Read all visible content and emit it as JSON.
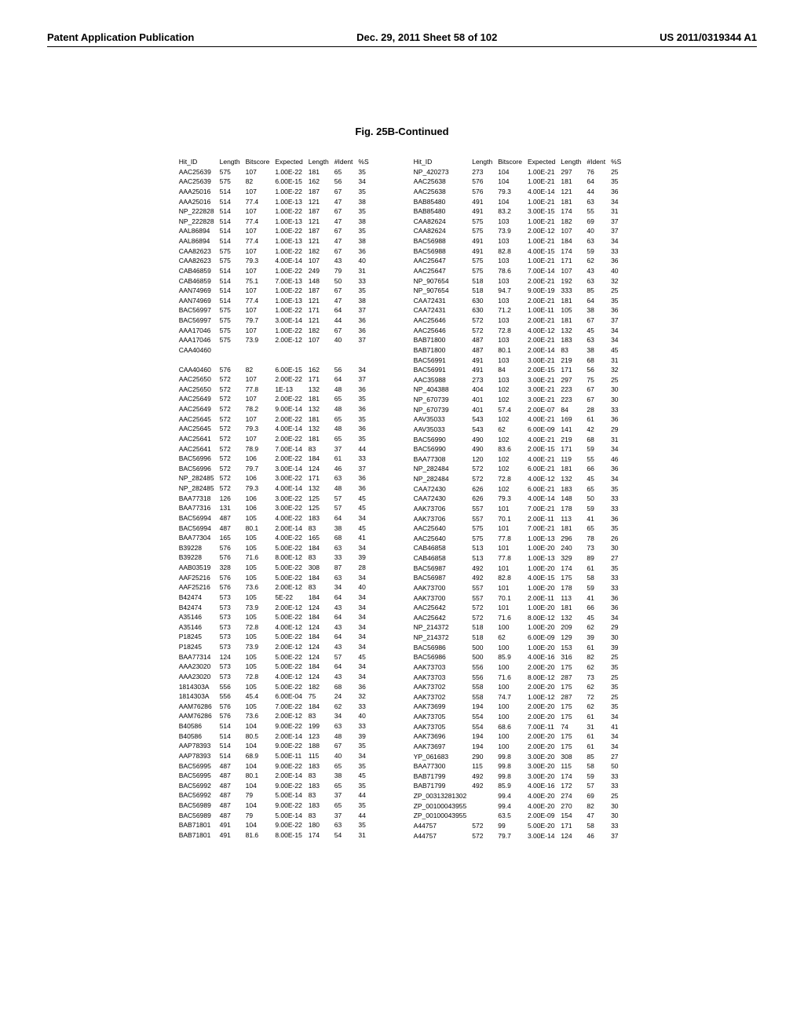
{
  "header": {
    "left": "Patent Application Publication",
    "center": "Dec. 29, 2011  Sheet 58 of 102",
    "right": "US 2011/0319344 A1"
  },
  "figure_title": "Fig. 25B-Continued",
  "columns_header": [
    "Hit_ID",
    "Length",
    "Bitscore",
    "Expected",
    "Length",
    "#Ident",
    "%S"
  ],
  "left_rows": [
    [
      "AAC25639",
      "575",
      "107",
      "1.00E-22",
      "181",
      "65",
      "35"
    ],
    [
      "AAC25639",
      "575",
      "82",
      "6.00E-15",
      "162",
      "56",
      "34"
    ],
    [
      "AAA25016",
      "514",
      "107",
      "1.00E-22",
      "187",
      "67",
      "35"
    ],
    [
      "AAA25016",
      "514",
      "77.4",
      "1.00E-13",
      "121",
      "47",
      "38"
    ],
    [
      "NP_222828",
      "514",
      "107",
      "1.00E-22",
      "187",
      "67",
      "35"
    ],
    [
      "NP_222828",
      "514",
      "77.4",
      "1.00E-13",
      "121",
      "47",
      "38"
    ],
    [
      "AAL86894",
      "514",
      "107",
      "1.00E-22",
      "187",
      "67",
      "35"
    ],
    [
      "AAL86894",
      "514",
      "77.4",
      "1.00E-13",
      "121",
      "47",
      "38"
    ],
    [
      "CAA82623",
      "575",
      "107",
      "1.00E-22",
      "182",
      "67",
      "36"
    ],
    [
      "CAA82623",
      "575",
      "79.3",
      "4.00E-14",
      "107",
      "43",
      "40"
    ],
    [
      "CAB46859",
      "514",
      "107",
      "1.00E-22",
      "249",
      "79",
      "31"
    ],
    [
      "CAB46859",
      "514",
      "75.1",
      "7.00E-13",
      "148",
      "50",
      "33"
    ],
    [
      "AAN74969",
      "514",
      "107",
      "1.00E-22",
      "187",
      "67",
      "35"
    ],
    [
      "AAN74969",
      "514",
      "77.4",
      "1.00E-13",
      "121",
      "47",
      "38"
    ],
    [
      "BAC56997",
      "575",
      "107",
      "1.00E-22",
      "171",
      "64",
      "37"
    ],
    [
      "BAC56997",
      "575",
      "79.7",
      "3.00E-14",
      "121",
      "44",
      "36"
    ],
    [
      "AAA17046",
      "575",
      "107",
      "1.00E-22",
      "182",
      "67",
      "36"
    ],
    [
      "AAA17046",
      "575",
      "73.9",
      "2.00E-12",
      "107",
      "40",
      "37"
    ],
    [
      "CAA40460",
      "",
      "",
      "",
      "",
      "",
      ""
    ],
    [
      "",
      "",
      "",
      "",
      "",
      "",
      ""
    ],
    [
      "CAA40460",
      "576",
      "82",
      "6.00E-15",
      "162",
      "56",
      "34"
    ],
    [
      "AAC25650",
      "572",
      "107",
      "2.00E-22",
      "171",
      "64",
      "37"
    ],
    [
      "AAC25650",
      "572",
      "77.8",
      "1E-13",
      "132",
      "48",
      "36"
    ],
    [
      "AAC25649",
      "572",
      "107",
      "2.00E-22",
      "181",
      "65",
      "35"
    ],
    [
      "AAC25649",
      "572",
      "78.2",
      "9.00E-14",
      "132",
      "48",
      "36"
    ],
    [
      "AAC25645",
      "572",
      "107",
      "2.00E-22",
      "181",
      "65",
      "35"
    ],
    [
      "AAC25645",
      "572",
      "79.3",
      "4.00E-14",
      "132",
      "48",
      "36"
    ],
    [
      "AAC25641",
      "572",
      "107",
      "2.00E-22",
      "181",
      "65",
      "35"
    ],
    [
      "AAC25641",
      "572",
      "78.9",
      "7.00E-14",
      "83",
      "37",
      "44"
    ],
    [
      "BAC56996",
      "572",
      "106",
      "2.00E-22",
      "184",
      "61",
      "33"
    ],
    [
      "BAC56996",
      "572",
      "79.7",
      "3.00E-14",
      "124",
      "46",
      "37"
    ],
    [
      "NP_282485",
      "572",
      "106",
      "3.00E-22",
      "171",
      "63",
      "36"
    ],
    [
      "NP_282485",
      "572",
      "79.3",
      "4.00E-14",
      "132",
      "48",
      "36"
    ],
    [
      "BAA77318",
      "126",
      "106",
      "3.00E-22",
      "125",
      "57",
      "45"
    ],
    [
      "BAA77316",
      "131",
      "106",
      "3.00E-22",
      "125",
      "57",
      "45"
    ],
    [
      "BAC56994",
      "487",
      "105",
      "4.00E-22",
      "183",
      "64",
      "34"
    ],
    [
      "BAC56994",
      "487",
      "80.1",
      "2.00E-14",
      "83",
      "38",
      "45"
    ],
    [
      "BAA77304",
      "165",
      "105",
      "4.00E-22",
      "165",
      "68",
      "41"
    ],
    [
      "B39228",
      "576",
      "105",
      "5.00E-22",
      "184",
      "63",
      "34"
    ],
    [
      "B39228",
      "576",
      "71.6",
      "8.00E-12",
      "83",
      "33",
      "39"
    ],
    [
      "AAB03519",
      "328",
      "105",
      "5.00E-22",
      "308",
      "87",
      "28"
    ],
    [
      "AAF25216",
      "576",
      "105",
      "5.00E-22",
      "184",
      "63",
      "34"
    ],
    [
      "AAF25216",
      "576",
      "73.6",
      "2.00E-12",
      "83",
      "34",
      "40"
    ],
    [
      "B42474",
      "573",
      "105",
      "5E-22",
      "184",
      "64",
      "34"
    ],
    [
      "B42474",
      "573",
      "73.9",
      "2.00E-12",
      "124",
      "43",
      "34"
    ],
    [
      "A35146",
      "573",
      "105",
      "5.00E-22",
      "184",
      "64",
      "34"
    ],
    [
      "A35146",
      "573",
      "72.8",
      "4.00E-12",
      "124",
      "43",
      "34"
    ],
    [
      "P18245",
      "573",
      "105",
      "5.00E-22",
      "184",
      "64",
      "34"
    ],
    [
      "P18245",
      "573",
      "73.9",
      "2.00E-12",
      "124",
      "43",
      "34"
    ],
    [
      "BAA77314",
      "124",
      "105",
      "5.00E-22",
      "124",
      "57",
      "45"
    ],
    [
      "AAA23020",
      "573",
      "105",
      "5.00E-22",
      "184",
      "64",
      "34"
    ],
    [
      "AAA23020",
      "573",
      "72.8",
      "4.00E-12",
      "124",
      "43",
      "34"
    ],
    [
      "1814303A",
      "556",
      "105",
      "5.00E-22",
      "182",
      "68",
      "36"
    ],
    [
      "1814303A",
      "556",
      "45.4",
      "6.00E-04",
      "75",
      "24",
      "32"
    ],
    [
      "AAM76286",
      "576",
      "105",
      "7.00E-22",
      "184",
      "62",
      "33"
    ],
    [
      "AAM76286",
      "576",
      "73.6",
      "2.00E-12",
      "83",
      "34",
      "40"
    ],
    [
      "B40586",
      "514",
      "104",
      "9.00E-22",
      "199",
      "63",
      "33"
    ],
    [
      "B40586",
      "514",
      "80.5",
      "2.00E-14",
      "123",
      "48",
      "39"
    ],
    [
      "AAP78393",
      "514",
      "104",
      "9.00E-22",
      "188",
      "67",
      "35"
    ],
    [
      "AAP78393",
      "514",
      "68.9",
      "5.00E-11",
      "115",
      "40",
      "34"
    ],
    [
      "BAC56995",
      "487",
      "104",
      "9.00E-22",
      "183",
      "65",
      "35"
    ],
    [
      "BAC56995",
      "487",
      "80.1",
      "2.00E-14",
      "83",
      "38",
      "45"
    ],
    [
      "BAC56992",
      "487",
      "104",
      "9.00E-22",
      "183",
      "65",
      "35"
    ],
    [
      "BAC56992",
      "487",
      "79",
      "5.00E-14",
      "83",
      "37",
      "44"
    ],
    [
      "BAC56989",
      "487",
      "104",
      "9.00E-22",
      "183",
      "65",
      "35"
    ],
    [
      "BAC56989",
      "487",
      "79",
      "5.00E-14",
      "83",
      "37",
      "44"
    ],
    [
      "BAB71801",
      "491",
      "104",
      "9.00E-22",
      "180",
      "63",
      "35"
    ],
    [
      "BAB71801",
      "491",
      "81.6",
      "8.00E-15",
      "174",
      "54",
      "31"
    ]
  ],
  "right_rows": [
    [
      "NP_420273",
      "273",
      "104",
      "1.00E-21",
      "297",
      "76",
      "25"
    ],
    [
      "AAC25638",
      "576",
      "104",
      "1.00E-21",
      "181",
      "64",
      "35"
    ],
    [
      "AAC25638",
      "576",
      "79.3",
      "4.00E-14",
      "121",
      "44",
      "36"
    ],
    [
      "BAB85480",
      "491",
      "104",
      "1.00E-21",
      "181",
      "63",
      "34"
    ],
    [
      "BAB85480",
      "491",
      "83.2",
      "3.00E-15",
      "174",
      "55",
      "31"
    ],
    [
      "CAA82624",
      "575",
      "103",
      "1.00E-21",
      "182",
      "69",
      "37"
    ],
    [
      "CAA82624",
      "575",
      "73.9",
      "2.00E-12",
      "107",
      "40",
      "37"
    ],
    [
      "BAC56988",
      "491",
      "103",
      "1.00E-21",
      "184",
      "63",
      "34"
    ],
    [
      "BAC56988",
      "491",
      "82.8",
      "4.00E-15",
      "174",
      "59",
      "33"
    ],
    [
      "AAC25647",
      "575",
      "103",
      "1.00E-21",
      "171",
      "62",
      "36"
    ],
    [
      "AAC25647",
      "575",
      "78.6",
      "7.00E-14",
      "107",
      "43",
      "40"
    ],
    [
      "NP_907654",
      "518",
      "103",
      "2.00E-21",
      "192",
      "63",
      "32"
    ],
    [
      "NP_907654",
      "518",
      "94.7",
      "9.00E-19",
      "333",
      "85",
      "25"
    ],
    [
      "CAA72431",
      "630",
      "103",
      "2.00E-21",
      "181",
      "64",
      "35"
    ],
    [
      "CAA72431",
      "630",
      "71.2",
      "1.00E-11",
      "105",
      "38",
      "36"
    ],
    [
      "AAC25646",
      "572",
      "103",
      "2.00E-21",
      "181",
      "67",
      "37"
    ],
    [
      "AAC25646",
      "572",
      "72.8",
      "4.00E-12",
      "132",
      "45",
      "34"
    ],
    [
      "BAB71800",
      "487",
      "103",
      "2.00E-21",
      "183",
      "63",
      "34"
    ],
    [
      "BAB71800",
      "487",
      "80.1",
      "2.00E-14",
      "83",
      "38",
      "45"
    ],
    [
      "BAC56991",
      "491",
      "103",
      "3.00E-21",
      "219",
      "68",
      "31"
    ],
    [
      "BAC56991",
      "491",
      "84",
      "2.00E-15",
      "171",
      "56",
      "32"
    ],
    [
      "AAC35988",
      "273",
      "103",
      "3.00E-21",
      "297",
      "75",
      "25"
    ],
    [
      "NP_404388",
      "404",
      "102",
      "3.00E-21",
      "223",
      "67",
      "30"
    ],
    [
      "NP_670739",
      "401",
      "102",
      "3.00E-21",
      "223",
      "67",
      "30"
    ],
    [
      "NP_670739",
      "401",
      "57.4",
      "2.00E-07",
      "84",
      "28",
      "33"
    ],
    [
      "AAV35033",
      "543",
      "102",
      "4.00E-21",
      "169",
      "61",
      "36"
    ],
    [
      "AAV35033",
      "543",
      "62",
      "6.00E-09",
      "141",
      "42",
      "29"
    ],
    [
      "BAC56990",
      "490",
      "102",
      "4.00E-21",
      "219",
      "68",
      "31"
    ],
    [
      "BAC56990",
      "490",
      "83.6",
      "2.00E-15",
      "171",
      "59",
      "34"
    ],
    [
      "BAA77308",
      "120",
      "102",
      "4.00E-21",
      "119",
      "55",
      "46"
    ],
    [
      "NP_282484",
      "572",
      "102",
      "6.00E-21",
      "181",
      "66",
      "36"
    ],
    [
      "NP_282484",
      "572",
      "72.8",
      "4.00E-12",
      "132",
      "45",
      "34"
    ],
    [
      "CAA72430",
      "626",
      "102",
      "6.00E-21",
      "183",
      "65",
      "35"
    ],
    [
      "CAA72430",
      "626",
      "79.3",
      "4.00E-14",
      "148",
      "50",
      "33"
    ],
    [
      "AAK73706",
      "557",
      "101",
      "7.00E-21",
      "178",
      "59",
      "33"
    ],
    [
      "AAK73706",
      "557",
      "70.1",
      "2.00E-11",
      "113",
      "41",
      "36"
    ],
    [
      "AAC25640",
      "575",
      "101",
      "7.00E-21",
      "181",
      "65",
      "35"
    ],
    [
      "AAC25640",
      "575",
      "77.8",
      "1.00E-13",
      "296",
      "78",
      "26"
    ],
    [
      "CAB46858",
      "513",
      "101",
      "1.00E-20",
      "240",
      "73",
      "30"
    ],
    [
      "CAB46858",
      "513",
      "77.8",
      "1.00E-13",
      "329",
      "89",
      "27"
    ],
    [
      "BAC56987",
      "492",
      "101",
      "1.00E-20",
      "174",
      "61",
      "35"
    ],
    [
      "BAC56987",
      "492",
      "82.8",
      "4.00E-15",
      "175",
      "58",
      "33"
    ],
    [
      "AAK73700",
      "557",
      "101",
      "1.00E-20",
      "178",
      "59",
      "33"
    ],
    [
      "AAK73700",
      "557",
      "70.1",
      "2.00E-11",
      "113",
      "41",
      "36"
    ],
    [
      "AAC25642",
      "572",
      "101",
      "1.00E-20",
      "181",
      "66",
      "36"
    ],
    [
      "AAC25642",
      "572",
      "71.6",
      "8.00E-12",
      "132",
      "45",
      "34"
    ],
    [
      "NP_214372",
      "518",
      "100",
      "1.00E-20",
      "209",
      "62",
      "29"
    ],
    [
      "NP_214372",
      "518",
      "62",
      "6.00E-09",
      "129",
      "39",
      "30"
    ],
    [
      "BAC56986",
      "500",
      "100",
      "1.00E-20",
      "153",
      "61",
      "39"
    ],
    [
      "BAC56986",
      "500",
      "85.9",
      "4.00E-16",
      "316",
      "82",
      "25"
    ],
    [
      "AAK73703",
      "556",
      "100",
      "2.00E-20",
      "175",
      "62",
      "35"
    ],
    [
      "AAK73703",
      "556",
      "71.6",
      "8.00E-12",
      "287",
      "73",
      "25"
    ],
    [
      "AAK73702",
      "558",
      "100",
      "2.00E-20",
      "175",
      "62",
      "35"
    ],
    [
      "AAK73702",
      "558",
      "74.7",
      "1.00E-12",
      "287",
      "72",
      "25"
    ],
    [
      "AAK73699",
      "194",
      "100",
      "2.00E-20",
      "175",
      "62",
      "35"
    ],
    [
      "AAK73705",
      "554",
      "100",
      "2.00E-20",
      "175",
      "61",
      "34"
    ],
    [
      "AAK73705",
      "554",
      "68.6",
      "7.00E-11",
      "74",
      "31",
      "41"
    ],
    [
      "AAK73696",
      "194",
      "100",
      "2.00E-20",
      "175",
      "61",
      "34"
    ],
    [
      "AAK73697",
      "194",
      "100",
      "2.00E-20",
      "175",
      "61",
      "34"
    ],
    [
      "YP_061683",
      "290",
      "99.8",
      "3.00E-20",
      "308",
      "85",
      "27"
    ],
    [
      "BAA77300",
      "115",
      "99.8",
      "3.00E-20",
      "115",
      "58",
      "50"
    ],
    [
      "BAB71799",
      "492",
      "99.8",
      "3.00E-20",
      "174",
      "59",
      "33"
    ],
    [
      "BAB71799",
      "492",
      "85.9",
      "4.00E-16",
      "172",
      "57",
      "33"
    ],
    [
      "ZP_00313281302",
      "",
      "99.4",
      "4.00E-20",
      "274",
      "69",
      "25"
    ],
    [
      "ZP_00100043955",
      "",
      "99.4",
      "4.00E-20",
      "270",
      "82",
      "30"
    ],
    [
      "ZP_00100043955",
      "",
      "63.5",
      "2.00E-09",
      "154",
      "47",
      "30"
    ],
    [
      "A44757",
      "572",
      "99",
      "5.00E-20",
      "171",
      "58",
      "33"
    ],
    [
      "A44757",
      "572",
      "79.7",
      "3.00E-14",
      "124",
      "46",
      "37"
    ]
  ]
}
